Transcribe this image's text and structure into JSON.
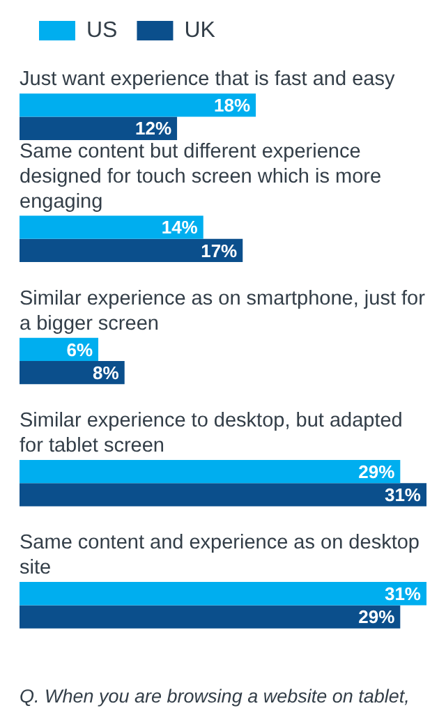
{
  "chart_data": {
    "type": "bar",
    "orientation": "horizontal",
    "legend": "top left",
    "categories": [
      "Just want experience that is fast and easy",
      "Same content but different experience designed for touch screen which is more engaging",
      "Similar experience as on smartphone, just for a bigger screen",
      "Similar experience to desktop, but adapted for tablet screen",
      "Same content and experience as on desktop site"
    ],
    "series": [
      {
        "name": "US",
        "color": "#00aeef",
        "values": [
          18,
          14,
          6,
          29,
          31
        ],
        "value_labels": [
          "18%",
          "14%",
          "6%",
          "29%",
          "31%"
        ]
      },
      {
        "name": "UK",
        "color": "#0b4f8c",
        "values": [
          12,
          17,
          8,
          31,
          29
        ],
        "value_labels": [
          "12%",
          "17%",
          "8%",
          "31%",
          "29%"
        ]
      }
    ],
    "annotations": [
      "Q. When you are browsing a website on tablet,"
    ]
  }
}
